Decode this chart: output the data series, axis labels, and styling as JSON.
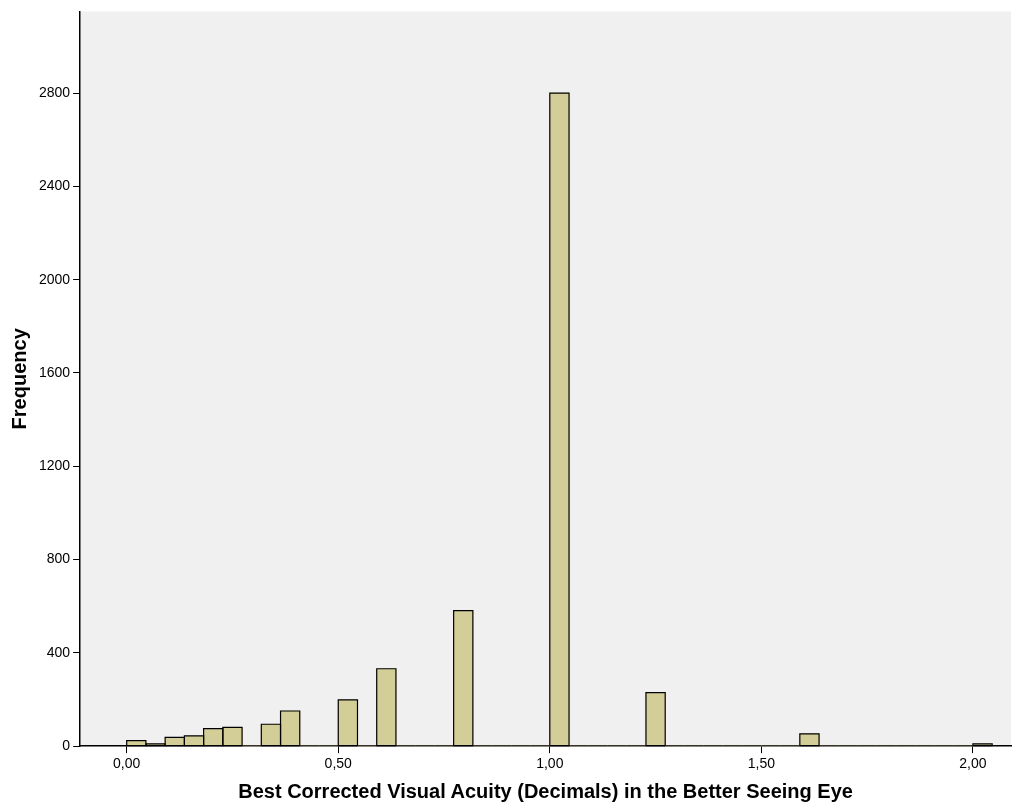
{
  "chart_data": {
    "type": "histogram",
    "xlabel": "Best Corrected Visual Acuity (Decimals) in the Better Seeing Eye",
    "ylabel": "Frequency",
    "bins": [
      0,
      0.0455,
      0.0909,
      0.1364,
      0.1818,
      0.2273,
      0.2727,
      0.3182,
      0.3636,
      0.4091,
      0.4545,
      0.5,
      0.5455,
      0.5909,
      0.6364,
      0.6818,
      0.7273,
      0.7727,
      0.8182,
      0.8636,
      0.9091,
      0.9545,
      1,
      1.0455,
      1.0909,
      1.1364,
      1.1818,
      1.2273,
      1.2727,
      1.3182,
      1.3636,
      1.4091,
      1.4545,
      1.5,
      1.5455,
      1.5909,
      1.6364,
      1.6818,
      1.7273,
      1.7727,
      1.8182,
      1.8636,
      1.9091,
      1.9545,
      2,
      2.0455
    ],
    "values": [
      24,
      10,
      38,
      44,
      75,
      81,
      0,
      94,
      151,
      0,
      0,
      199,
      0,
      332,
      0,
      0,
      0,
      581,
      0,
      0,
      0,
      0,
      2800,
      0,
      0,
      0,
      0,
      230,
      0,
      0,
      0,
      0,
      0,
      0,
      0,
      53,
      0,
      0,
      0,
      0,
      0,
      0,
      0,
      0,
      10
    ],
    "color": "#d3ce97",
    "xlim": [
      -0.11,
      2.09
    ],
    "xticks": [
      {
        "value": 0,
        "label": "0,00"
      },
      {
        "value": 0.5,
        "label": "0,50"
      },
      {
        "value": 1,
        "label": "1,00"
      },
      {
        "value": 1.5,
        "label": "1,50"
      },
      {
        "value": 2,
        "label": "2,00"
      }
    ],
    "ylim": [
      0,
      3150
    ],
    "yticks": [
      0,
      400,
      800,
      1200,
      1600,
      2000,
      2400,
      2800
    ],
    "grid": false,
    "legend": false
  }
}
